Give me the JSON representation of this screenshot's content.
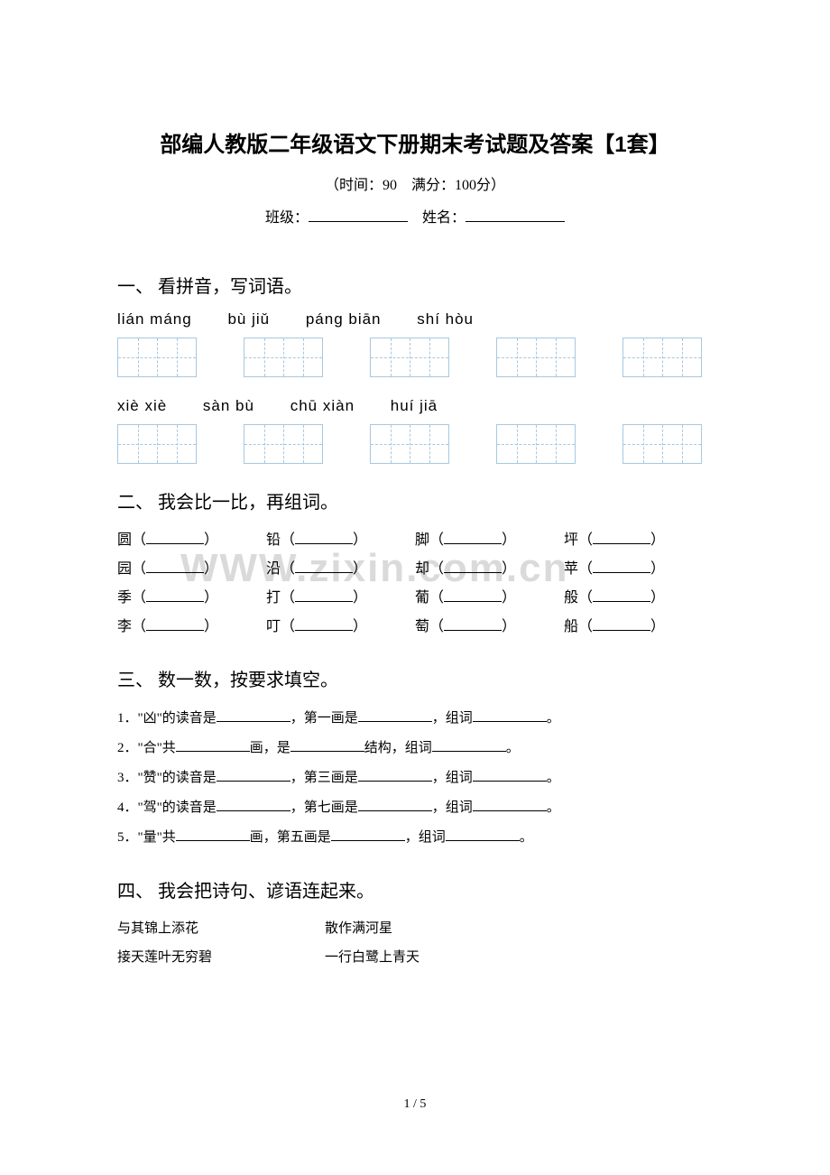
{
  "title": "部编人教版二年级语文下册期末考试题及答案【1套】",
  "time_score": "（时间：90　满分：100分）",
  "class_label": "班级：",
  "name_label": "姓名：",
  "section1": {
    "heading": "一、 看拼音，写词语。",
    "pinyin_rows": [
      [
        "lián  máng",
        "bù  jiǔ",
        "páng biān",
        "shí  hòu"
      ],
      [
        "xiè  xiè",
        "sàn  bù",
        "chū  xiàn",
        "huí  jiā"
      ]
    ]
  },
  "section2": {
    "heading": "二、 我会比一比，再组词。",
    "rows": [
      [
        "圆",
        "铅",
        "脚",
        "坪"
      ],
      [
        "园",
        "沿",
        "却",
        "苹"
      ],
      [
        "季",
        "打",
        "葡",
        "般"
      ],
      [
        "李",
        "叮",
        "萄",
        "船"
      ]
    ]
  },
  "section3": {
    "heading": "三、 数一数，按要求填空。",
    "items": [
      {
        "n": "1．",
        "a": "\"凶\"的读音是",
        "b": "，第一画是",
        "c": "，组词",
        "d": "。"
      },
      {
        "n": "2．",
        "a": "\"合\"共",
        "b": "画，是",
        "c": "结构，组词",
        "d": "。"
      },
      {
        "n": "3．",
        "a": "\"赞\"的读音是",
        "b": "，第三画是",
        "c": "，组词",
        "d": "。"
      },
      {
        "n": "4．",
        "a": "\"驾\"的读音是",
        "b": "，第七画是",
        "c": "，组词",
        "d": "。"
      },
      {
        "n": "5．",
        "a": "\"量\"共",
        "b": "画，第五画是",
        "c": "，组词",
        "d": "。"
      }
    ]
  },
  "section4": {
    "heading": "四、 我会把诗句、谚语连起来。",
    "pairs": [
      {
        "left": "与其锦上添花",
        "right": "散作满河星"
      },
      {
        "left": "接天莲叶无穷碧",
        "right": "一行白鹭上青天"
      }
    ]
  },
  "page_num": "1 / 5",
  "watermark": "WWW.zixin.com.cn",
  "colors": {
    "text": "#000000",
    "box_border": "#a8c8e0",
    "watermark": "rgba(150,150,150,0.35)",
    "bg": "#ffffff"
  }
}
